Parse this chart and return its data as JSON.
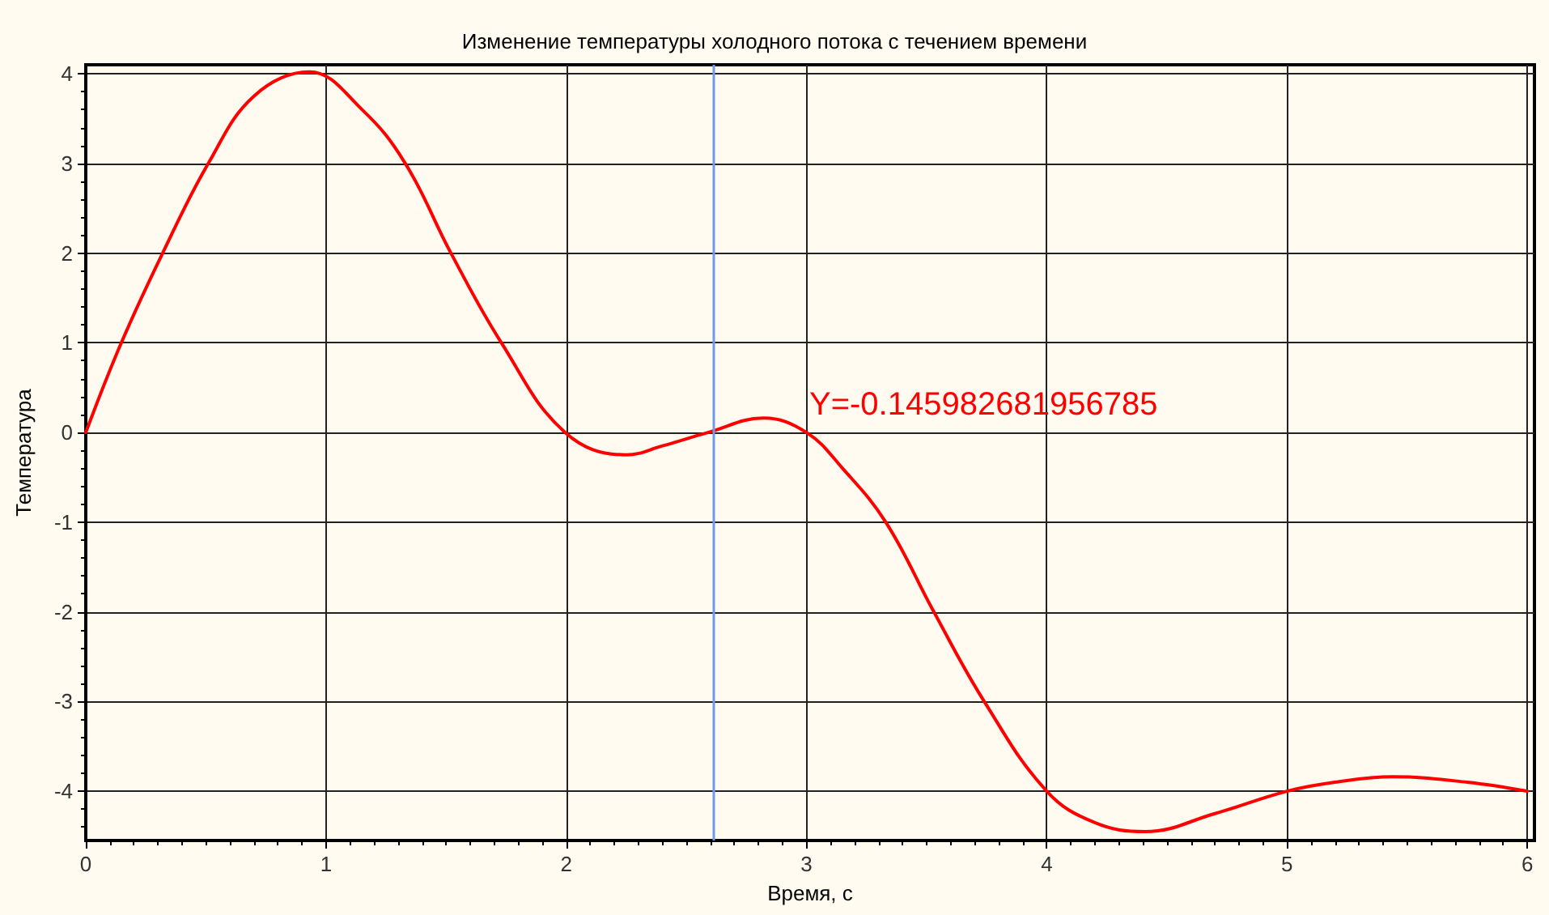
{
  "chart_data": {
    "type": "line",
    "title": "Изменение температуры холодного потока с течением времени",
    "xlabel": "Время, с",
    "ylabel": "Температура",
    "x": [
      0,
      0.148,
      0.32,
      0.51,
      0.7,
      0.93,
      1.15,
      1.33,
      1.52,
      1.73,
      1.995,
      2.25,
      2.4,
      2.59,
      2.82,
      3.0,
      3.15,
      3.33,
      3.53,
      3.74,
      4.0,
      4.2,
      4.41,
      4.7,
      5.0,
      5.2,
      5.44,
      5.75,
      6.0
    ],
    "series": [
      {
        "color": "#ff0000",
        "values": [
          0,
          1,
          2,
          3,
          3.75,
          4.02,
          3.6,
          3,
          2,
          1,
          0,
          -0.25,
          -0.15,
          0,
          0.16,
          0,
          -0.4,
          -1,
          -2,
          -3,
          -4,
          -4.35,
          -4.45,
          -4.25,
          -4,
          -3.9,
          -3.84,
          -3.9,
          -4
        ]
      }
    ],
    "xlim": [
      0,
      6.03
    ],
    "xticks": [
      0,
      1,
      2,
      3,
      4,
      5,
      6
    ],
    "ylim": [
      -4.55,
      4.1
    ],
    "yticks": [
      -4,
      -3,
      -2,
      -1,
      0,
      1,
      2,
      3,
      4
    ],
    "grid": true,
    "marker": "none",
    "line_style": "solid",
    "ref_lines": [
      {
        "axis": "x",
        "value": 2.61,
        "color": "#6f9be8"
      }
    ],
    "annotations": [
      "Y=-0.145982681956785"
    ]
  }
}
